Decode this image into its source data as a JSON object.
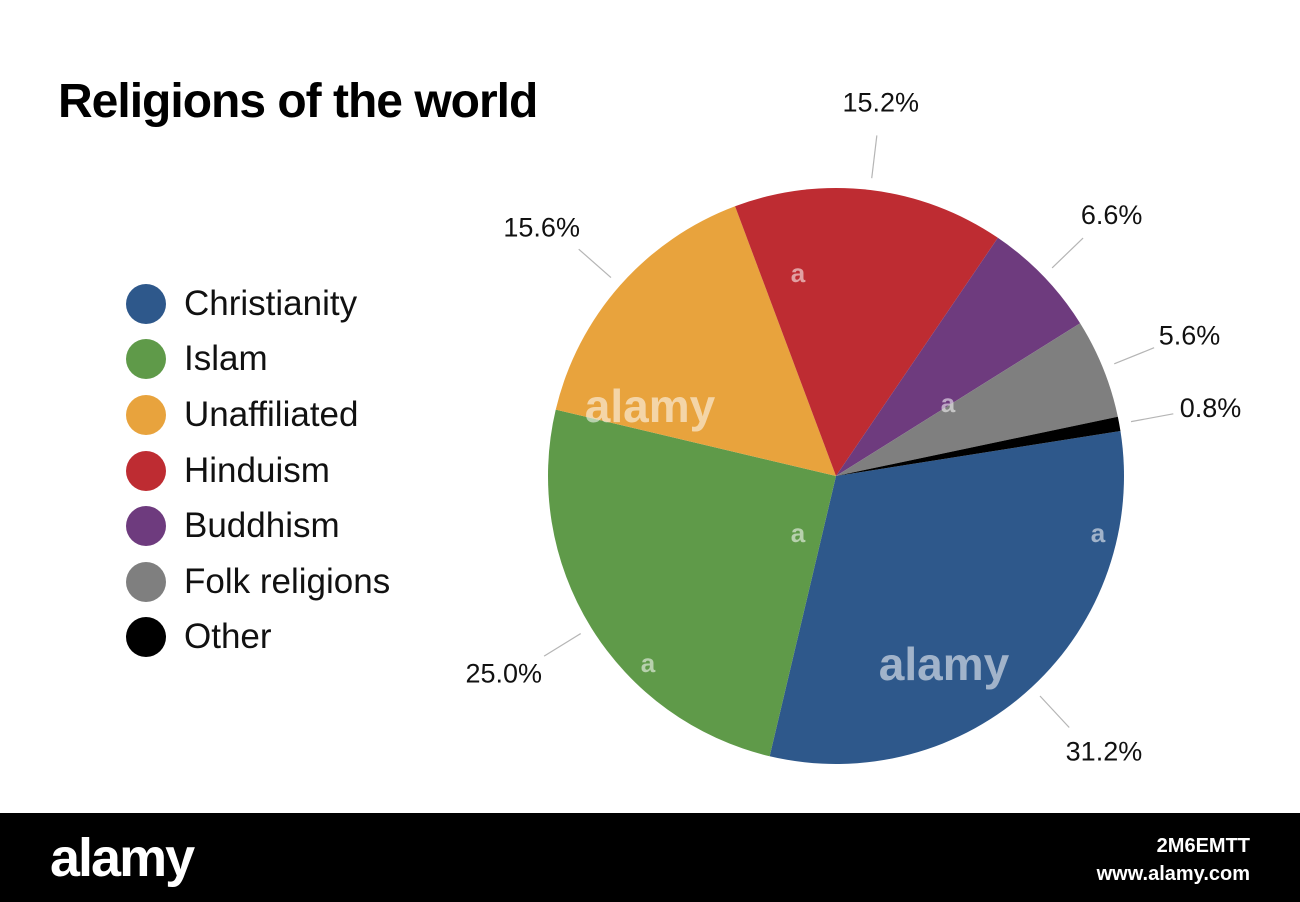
{
  "title": "Religions of the world",
  "chart_data": {
    "type": "pie",
    "title": "Religions of the world",
    "legend_position": "left",
    "slices": [
      {
        "name": "Christianity",
        "value": 31.2,
        "label": "31.2%",
        "color": "#2e588b"
      },
      {
        "name": "Islam",
        "value": 25.0,
        "label": "25.0%",
        "color": "#5f9a49"
      },
      {
        "name": "Unaffiliated",
        "value": 15.6,
        "label": "15.6%",
        "color": "#e8a33d"
      },
      {
        "name": "Hinduism",
        "value": 15.2,
        "label": "15.2%",
        "color": "#be2c32"
      },
      {
        "name": "Buddhism",
        "value": 6.6,
        "label": "6.6%",
        "color": "#6e3b7e"
      },
      {
        "name": "Folk religions",
        "value": 5.6,
        "label": "5.6%",
        "color": "#7f7f7f"
      },
      {
        "name": "Other",
        "value": 0.8,
        "label": "0.8%",
        "color": "#000000"
      }
    ]
  },
  "watermark": {
    "text": "alamy",
    "letter": "a"
  },
  "footer": {
    "logo": "alamy",
    "image_code": "2M6EMTT",
    "url": "www.alamy.com"
  }
}
